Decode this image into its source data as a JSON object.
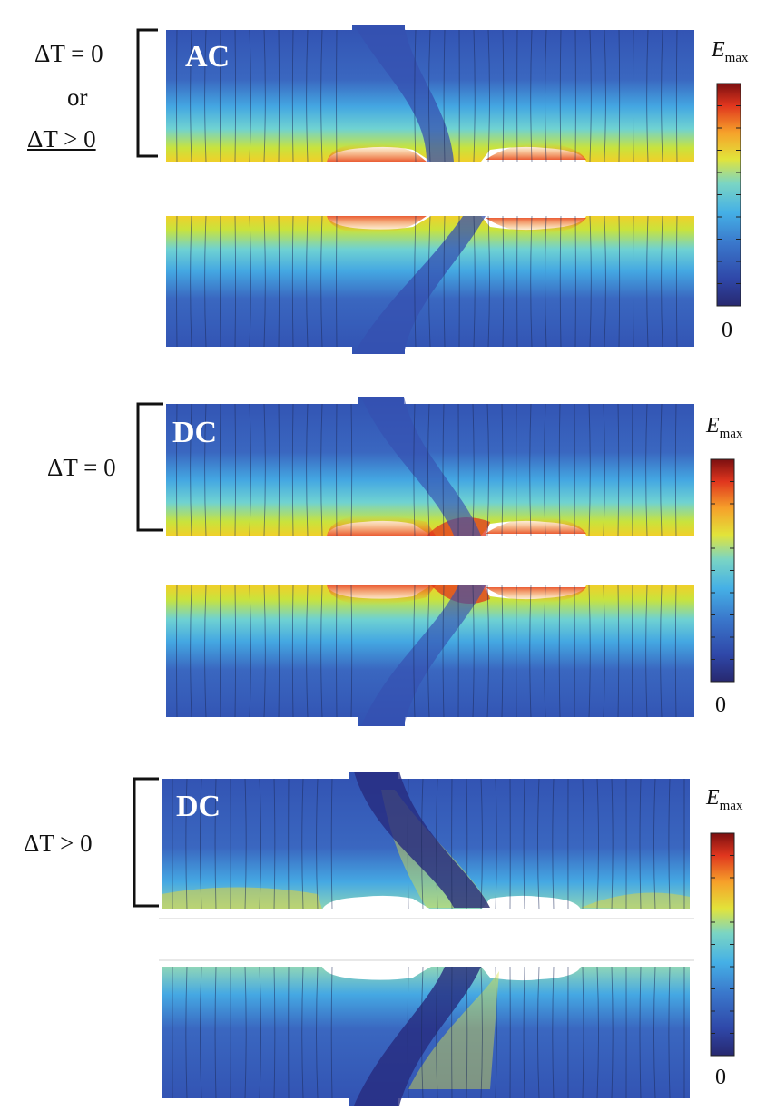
{
  "groups": [
    {
      "mode": "AC",
      "condition_lines": [
        "ΔT = 0",
        "or",
        "ΔT > 0"
      ],
      "colorbar": {
        "max_label": "E",
        "max_sub": "max",
        "min_label": "0"
      }
    },
    {
      "mode": "DC",
      "condition_lines": [
        "ΔT = 0"
      ],
      "colorbar": {
        "max_label": "E",
        "max_sub": "max",
        "min_label": "0"
      }
    },
    {
      "mode": "DC",
      "condition_lines": [
        "ΔT > 0"
      ],
      "colorbar": {
        "max_label": "E",
        "max_sub": "max",
        "min_label": "0"
      }
    }
  ],
  "colors": {
    "colormap": [
      "#2b2e86",
      "#3453b4",
      "#3e7fd0",
      "#45b4e8",
      "#7cd6c2",
      "#e2e23a",
      "#f5a623",
      "#e23b1f",
      "#8a1111"
    ],
    "bracket": "#111111"
  }
}
